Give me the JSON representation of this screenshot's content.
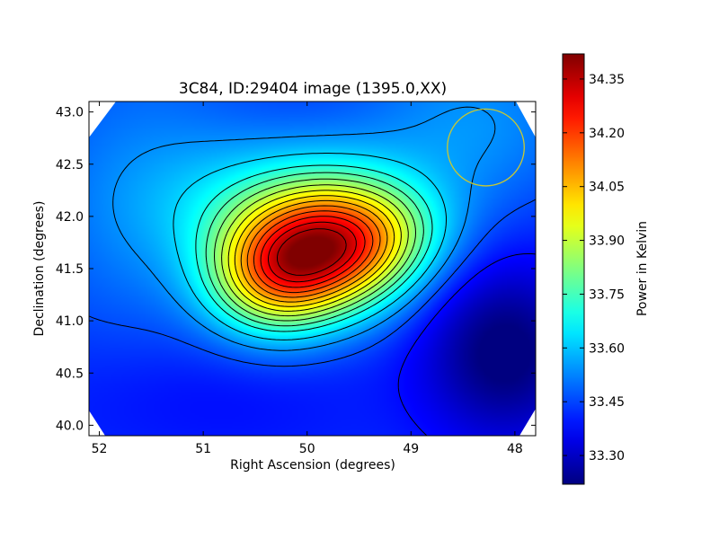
{
  "chart_data": {
    "type": "heatmap",
    "title": "3C84, ID:29404 image (1395.0,XX)",
    "xlabel": "Right Ascension (degrees)",
    "ylabel": "Declination (degrees)",
    "xlim": [
      52.1,
      47.8
    ],
    "ylim": [
      39.9,
      43.1
    ],
    "x_ticks": [
      52,
      51,
      50,
      49,
      48
    ],
    "x_tick_labels": [
      "52",
      "51",
      "50",
      "49",
      "48"
    ],
    "y_ticks": [
      40.0,
      40.5,
      41.0,
      41.5,
      42.0,
      42.5,
      43.0
    ],
    "y_tick_labels": [
      "40.0",
      "40.5",
      "41.0",
      "41.5",
      "42.0",
      "42.5",
      "43.0"
    ],
    "colorbar": {
      "label": "Power in Kelvin",
      "range": [
        33.22,
        34.42
      ],
      "ticks": [
        33.3,
        33.45,
        33.6,
        33.75,
        33.9,
        34.05,
        34.2,
        34.35
      ],
      "tick_labels": [
        "33.30",
        "33.45",
        "33.60",
        "33.75",
        "33.90",
        "34.05",
        "34.20",
        "34.35"
      ],
      "colormap": "jet"
    },
    "field": {
      "background": 33.42,
      "components": [
        {
          "ra": 49.8,
          "dec": 41.65,
          "amp": 0.62,
          "sigma_ra": 0.55,
          "sigma_dec": 0.42
        },
        {
          "ra": 50.35,
          "dec": 41.4,
          "amp": 0.42,
          "sigma_ra": 0.45,
          "sigma_dec": 0.4
        },
        {
          "ra": 50.1,
          "dec": 42.1,
          "amp": 0.22,
          "sigma_ra": 0.85,
          "sigma_dec": 0.45
        },
        {
          "ra": 49.3,
          "dec": 41.85,
          "amp": 0.18,
          "sigma_ra": 0.5,
          "sigma_dec": 0.35
        },
        {
          "ra": 51.6,
          "dec": 42.2,
          "amp": 0.1,
          "sigma_ra": 0.8,
          "sigma_dec": 1.1
        },
        {
          "ra": 48.4,
          "dec": 42.9,
          "amp": 0.12,
          "sigma_ra": 0.8,
          "sigma_dec": 0.6
        },
        {
          "ra": 48.1,
          "dec": 40.7,
          "amp": -0.22,
          "sigma_ra": 0.55,
          "sigma_dec": 0.6
        },
        {
          "ra": 51.1,
          "dec": 40.3,
          "amp": -0.05,
          "sigma_ra": 1.1,
          "sigma_dec": 0.45
        }
      ]
    },
    "contour_levels": [
      33.38,
      33.46,
      33.54,
      33.62,
      33.7,
      33.76,
      33.82,
      33.88,
      33.94,
      34.0,
      34.06,
      34.12,
      34.18,
      34.24,
      34.3,
      34.36
    ],
    "beam": {
      "ra": 48.28,
      "dec": 42.66,
      "radius_deg": 0.37,
      "color": "#c8c832"
    },
    "grid": false
  }
}
